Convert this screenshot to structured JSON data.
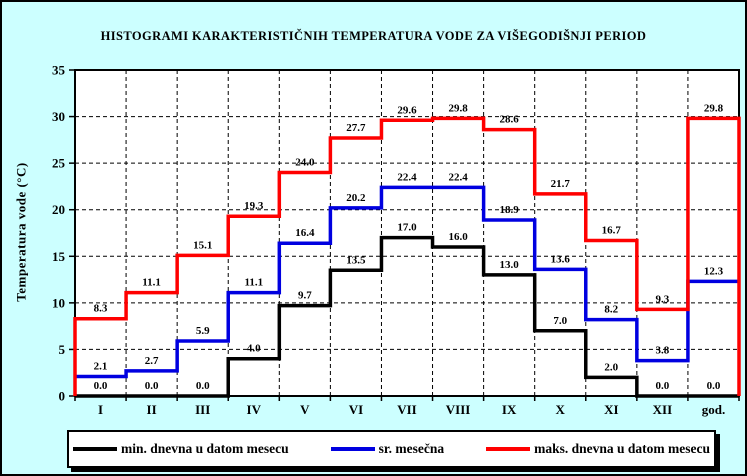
{
  "window": {
    "background": "#ccffff",
    "plot_background": "#ffffff"
  },
  "chart_data": {
    "type": "line",
    "subtype": "step-histogram",
    "title": "HISTOGRAMI KARAKTERISTIČNIH TEMPERATURA VODE ZA VIŠEGODIŠNJI PERIOD",
    "xlabel": "",
    "ylabel": "Temperatura vode (°C)",
    "categories": [
      "I",
      "II",
      "III",
      "IV",
      "V",
      "VI",
      "VII",
      "VIII",
      "IX",
      "X",
      "XI",
      "XII",
      "god."
    ],
    "ylim": [
      0,
      35
    ],
    "ytick_step": 5,
    "grid": true,
    "gridline_color": "#000000",
    "legend_position": "bottom",
    "value_labels_decimals": 1,
    "series": [
      {
        "name": "min. dnevna u datom mesecu",
        "color": "#000000",
        "edge_drop": false,
        "values": [
          0.0,
          0.0,
          0.0,
          4.0,
          9.7,
          13.5,
          17.0,
          16.0,
          13.0,
          7.0,
          2.0,
          0.0,
          0.0
        ]
      },
      {
        "name": "sr. mesečna",
        "color": "#0000e0",
        "edge_drop": false,
        "values": [
          2.1,
          2.7,
          5.9,
          11.1,
          16.4,
          20.2,
          22.4,
          22.4,
          18.9,
          13.6,
          8.2,
          3.8,
          12.3
        ]
      },
      {
        "name": "maks. dnevna u datom mesecu",
        "color": "#ff0000",
        "edge_drop": true,
        "values": [
          8.3,
          11.1,
          15.1,
          19.3,
          24.0,
          27.7,
          29.6,
          29.8,
          28.6,
          21.7,
          16.7,
          9.3,
          29.8
        ]
      }
    ]
  }
}
